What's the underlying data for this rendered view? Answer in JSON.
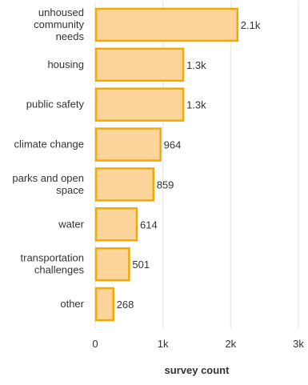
{
  "chart_data": {
    "type": "bar",
    "orientation": "horizontal",
    "categories": [
      "unhoused community needs",
      "housing",
      "public safety",
      "climate change",
      "parks and open space",
      "water",
      "transportation challenges",
      "other"
    ],
    "category_label_lines": [
      [
        "unhoused",
        "community",
        "needs"
      ],
      [
        "housing"
      ],
      [
        "public safety"
      ],
      [
        "climate change"
      ],
      [
        "parks and open",
        "space"
      ],
      [
        "water"
      ],
      [
        "transportation",
        "challenges"
      ],
      [
        "other"
      ]
    ],
    "values": [
      2100,
      1300,
      1300,
      964,
      859,
      614,
      501,
      268
    ],
    "data_labels": [
      "2.1k",
      "1.3k",
      "1.3k",
      "964",
      "859",
      "614",
      "501",
      "268"
    ],
    "xlabel": "survey count",
    "ylabel": "",
    "xlim": [
      0,
      3000
    ],
    "x_ticks": [
      0,
      1000,
      2000,
      3000
    ],
    "x_tick_labels": [
      "0",
      "1k",
      "2k",
      "3k"
    ],
    "grid": true,
    "legend": "none",
    "colors": {
      "bar_fill": "#fdd59a",
      "bar_stroke": "#f2a900",
      "grid": "#e3e3e3",
      "text": "#333333"
    }
  }
}
